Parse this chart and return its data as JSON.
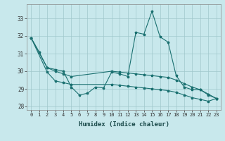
{
  "xlabel": "Humidex (Indice chaleur)",
  "bg_color": "#c8e8ec",
  "grid_color": "#a0c8cc",
  "line_color": "#1a7070",
  "xlim": [
    -0.5,
    23.5
  ],
  "ylim": [
    27.8,
    33.8
  ],
  "yticks": [
    28,
    29,
    30,
    31,
    32,
    33
  ],
  "xticks": [
    0,
    1,
    2,
    3,
    4,
    5,
    6,
    7,
    8,
    9,
    10,
    11,
    12,
    13,
    14,
    15,
    16,
    17,
    18,
    19,
    20,
    21,
    22,
    23
  ],
  "line1_x": [
    0,
    1,
    2,
    3,
    4,
    5,
    6,
    7,
    8,
    9,
    10,
    11,
    12,
    13,
    14,
    15,
    16,
    17,
    18,
    19,
    20,
    21,
    22,
    23
  ],
  "line1_y": [
    31.9,
    31.1,
    30.2,
    30.1,
    30.0,
    29.1,
    28.65,
    28.75,
    29.1,
    29.05,
    29.95,
    29.85,
    29.7,
    32.2,
    32.1,
    33.4,
    31.95,
    31.65,
    29.75,
    29.1,
    28.95,
    28.95,
    28.65,
    28.45
  ],
  "line2_x": [
    0,
    2,
    3,
    4,
    5,
    10,
    11,
    12,
    13,
    14,
    15,
    16,
    17,
    18,
    19,
    20,
    21,
    22,
    23
  ],
  "line2_y": [
    31.9,
    30.2,
    30.0,
    29.85,
    29.7,
    30.0,
    29.95,
    29.9,
    29.85,
    29.8,
    29.75,
    29.7,
    29.65,
    29.5,
    29.3,
    29.1,
    28.95,
    28.7,
    28.45
  ],
  "line3_x": [
    0,
    2,
    3,
    4,
    5,
    10,
    11,
    12,
    13,
    14,
    15,
    16,
    17,
    18,
    19,
    20,
    21,
    22,
    23
  ],
  "line3_y": [
    31.9,
    29.95,
    29.45,
    29.35,
    29.25,
    29.25,
    29.2,
    29.15,
    29.1,
    29.05,
    29.0,
    28.95,
    28.9,
    28.8,
    28.65,
    28.5,
    28.4,
    28.3,
    28.45
  ]
}
